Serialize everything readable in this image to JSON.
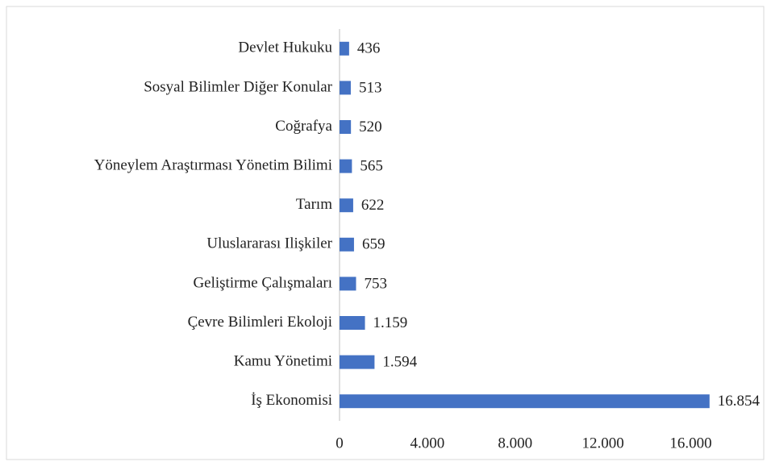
{
  "chart_data": {
    "type": "hbar",
    "categories": [
      "Devlet Hukuku",
      "Sosyal Bilimler Diğer Konular",
      "Coğrafya",
      "Yöneylem Araştırması Yönetim Bilimi",
      "Tarım",
      "Uluslararası Ilişkiler",
      "Geliştirme Çalışmaları",
      "Çevre Bilimleri Ekoloji",
      "Kamu Yönetimi",
      "İş Ekonomisi"
    ],
    "values": [
      436,
      513,
      520,
      565,
      622,
      659,
      753,
      1159,
      1594,
      16854
    ],
    "value_labels": [
      "436",
      "513",
      "520",
      "565",
      "622",
      "659",
      "753",
      "1.159",
      "1.594",
      "16.854"
    ],
    "color": "#4472c4",
    "xlim": [
      0,
      18000
    ],
    "xticks": [
      0,
      {
        "value": 4000,
        "label": "4.000"
      },
      {
        "value": 8000,
        "label": "8.000"
      },
      {
        "value": 12000,
        "label": "12.000"
      },
      {
        "value": 16000,
        "label": "16.000"
      }
    ],
    "grid": false
  }
}
